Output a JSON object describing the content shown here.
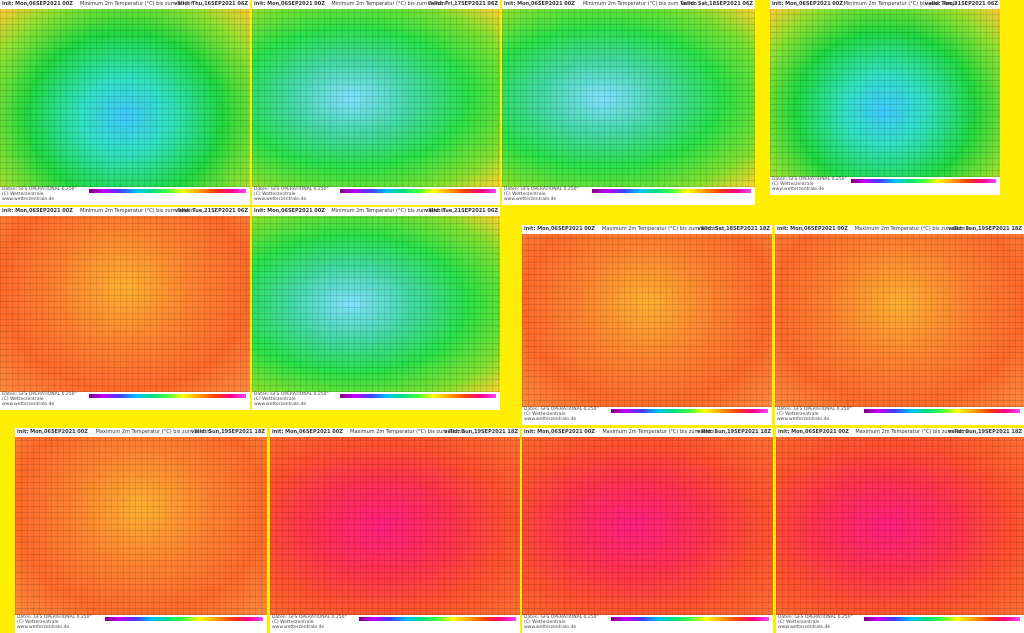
{
  "panels": [
    {
      "init": "init: Mon,06SEP2021 00Z",
      "title": "Minimum 2m Temperatur (°C) bis zum Termin",
      "valid": "valid: Thu,16SEP2021 06Z",
      "source": "Daten: GFS OPERATIONAL 0.250°",
      "copyright": "(C) Wetterzentrale",
      "url": "www.wetterzentrale.de"
    },
    {
      "init": "init: Mon,06SEP2021 00Z",
      "title": "Minimum 2m Temperatur (°C) bis zum Termin",
      "valid": "valid: Fri,17SEP2021 06Z",
      "source": "Daten: GFS OPERATIONAL 0.250°",
      "copyright": "(C) Wetterzentrale",
      "url": "www.wetterzentrale.de"
    },
    {
      "init": "init: Mon,06SEP2021 00Z",
      "title": "Minimum 2m Temperatur (°C) bis zum Termin",
      "valid": "valid: Sat,18SEP2021 06Z",
      "source": "Daten: GFS OPERATIONAL 0.250°",
      "copyright": "(C) Wetterzentrale",
      "url": "www.wetterzentrale.de"
    },
    {
      "init": "init: Mon,06SEP2021 00Z",
      "title": "Minimum 2m Temperatur (°C) bis zum Termin",
      "valid": "valid: Tue,21SEP2021 06Z",
      "source": "Daten: GFS OPERATIONAL 0.250°",
      "copyright": "(C) Wetterzentrale",
      "url": "www.wetterzentrale.de"
    },
    {
      "init": "init: Mon,06SEP2021 00Z",
      "title": "Minimum 2m Temperatur (°C) bis zum Termin",
      "valid": "valid: Tue,21SEP2021 06Z",
      "source": "Daten: GFS OPERATIONAL 0.250°",
      "copyright": "(C) Wetterzentrale",
      "url": "www.wetterzentrale.de"
    },
    {
      "init": "init: Mon,06SEP2021 00Z",
      "title": "Minimum 2m Temperatur (°C) bis zum Termin",
      "valid": "valid: Tue,21SEP2021 06Z",
      "source": "Daten: GFS OPERATIONAL 0.250°",
      "copyright": "(C) Wetterzentrale",
      "url": "www.wetterzentrale.de"
    },
    {
      "init": "init: Mon,06SEP2021 00Z",
      "title": "Maximum 2m Temperatur (°C) bis zum Termin",
      "valid": "valid: Sat,18SEP2021 18Z",
      "source": "Daten: GFS OPERATIONAL 0.250°",
      "copyright": "(C) Wetterzentrale",
      "url": "www.wetterzentrale.de"
    },
    {
      "init": "init: Mon,06SEP2021 00Z",
      "title": "Maximum 2m Temperatur (°C) bis zum Termin",
      "valid": "valid: Sun,19SEP2021 18Z",
      "source": "Daten: GFS OPERATIONAL 0.250°",
      "copyright": "(C) Wetterzentrale",
      "url": "www.wetterzentrale.de"
    },
    {
      "init": "init: Mon,06SEP2021 00Z",
      "title": "Maximum 2m Temperatur (°C) bis zum Termin",
      "valid": "valid: Sun,19SEP2021 18Z",
      "source": "Daten: GFS OPERATIONAL 0.250°",
      "copyright": "(C) Wetterzentrale",
      "url": "www.wetterzentrale.de"
    },
    {
      "init": "init: Mon,06SEP2021 00Z",
      "title": "Maximum 2m Temperatur (°C) bis zum Termin",
      "valid": "valid: Sun,19SEP2021 18Z",
      "source": "Daten: GFS OPERATIONAL 0.250°",
      "copyright": "(C) Wetterzentrale",
      "url": "www.wetterzentrale.de"
    },
    {
      "init": "init: Mon,06SEP2021 00Z",
      "title": "Maximum 2m Temperatur (°C) bis zum Termin",
      "valid": "valid: Sun,19SEP2021 18Z",
      "source": "Daten: GFS OPERATIONAL 0.250°",
      "copyright": "(C) Wetterzentrale",
      "url": "www.wetterzentrale.de"
    },
    {
      "init": "init: Mon,06SEP2021 00Z",
      "title": "Maximum 2m Temperatur (°C) bis zum Termin",
      "valid": "valid: Sun,19SEP2021 18Z",
      "source": "Daten: GFS OPERATIONAL 0.250°",
      "copyright": "(C) Wetterzentrale",
      "url": "www.wetterzentrale.de"
    }
  ]
}
